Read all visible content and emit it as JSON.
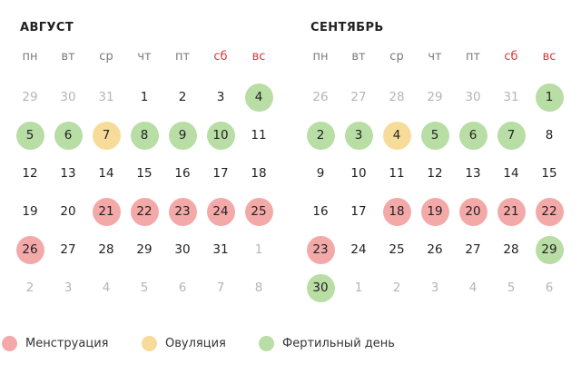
{
  "months": [
    {
      "title": "АВГУСТ",
      "weekdays": [
        "пн",
        "вт",
        "ср",
        "чт",
        "пт",
        "сб",
        "вс"
      ],
      "days": [
        {
          "n": "29",
          "dim": true
        },
        {
          "n": "30",
          "dim": true
        },
        {
          "n": "31",
          "dim": true
        },
        {
          "n": "1"
        },
        {
          "n": "2"
        },
        {
          "n": "3"
        },
        {
          "n": "4",
          "type": "fertile"
        },
        {
          "n": "5",
          "type": "fertile"
        },
        {
          "n": "6",
          "type": "fertile"
        },
        {
          "n": "7",
          "type": "ovulation"
        },
        {
          "n": "8",
          "type": "fertile"
        },
        {
          "n": "9",
          "type": "fertile"
        },
        {
          "n": "10",
          "type": "fertile"
        },
        {
          "n": "11"
        },
        {
          "n": "12"
        },
        {
          "n": "13"
        },
        {
          "n": "14"
        },
        {
          "n": "15"
        },
        {
          "n": "16"
        },
        {
          "n": "17"
        },
        {
          "n": "18"
        },
        {
          "n": "19"
        },
        {
          "n": "20"
        },
        {
          "n": "21",
          "type": "menstruation"
        },
        {
          "n": "22",
          "type": "menstruation"
        },
        {
          "n": "23",
          "type": "menstruation"
        },
        {
          "n": "24",
          "type": "menstruation"
        },
        {
          "n": "25",
          "type": "menstruation"
        },
        {
          "n": "26",
          "type": "menstruation"
        },
        {
          "n": "27"
        },
        {
          "n": "28"
        },
        {
          "n": "29"
        },
        {
          "n": "30"
        },
        {
          "n": "31"
        },
        {
          "n": "1",
          "dim": true
        },
        {
          "n": "2",
          "dim": true
        },
        {
          "n": "3",
          "dim": true
        },
        {
          "n": "4",
          "dim": true
        },
        {
          "n": "5",
          "dim": true
        },
        {
          "n": "6",
          "dim": true
        },
        {
          "n": "7",
          "dim": true
        },
        {
          "n": "8",
          "dim": true
        }
      ]
    },
    {
      "title": "СЕНТЯБРЬ",
      "weekdays": [
        "пн",
        "вт",
        "ср",
        "чт",
        "пт",
        "сб",
        "вс"
      ],
      "days": [
        {
          "n": "26",
          "dim": true
        },
        {
          "n": "27",
          "dim": true
        },
        {
          "n": "28",
          "dim": true
        },
        {
          "n": "29",
          "dim": true
        },
        {
          "n": "30",
          "dim": true
        },
        {
          "n": "31",
          "dim": true
        },
        {
          "n": "1",
          "type": "fertile"
        },
        {
          "n": "2",
          "type": "fertile"
        },
        {
          "n": "3",
          "type": "fertile"
        },
        {
          "n": "4",
          "type": "ovulation"
        },
        {
          "n": "5",
          "type": "fertile"
        },
        {
          "n": "6",
          "type": "fertile"
        },
        {
          "n": "7",
          "type": "fertile"
        },
        {
          "n": "8"
        },
        {
          "n": "9"
        },
        {
          "n": "10"
        },
        {
          "n": "11"
        },
        {
          "n": "12"
        },
        {
          "n": "13"
        },
        {
          "n": "14"
        },
        {
          "n": "15"
        },
        {
          "n": "16"
        },
        {
          "n": "17"
        },
        {
          "n": "18",
          "type": "menstruation"
        },
        {
          "n": "19",
          "type": "menstruation"
        },
        {
          "n": "20",
          "type": "menstruation"
        },
        {
          "n": "21",
          "type": "menstruation"
        },
        {
          "n": "22",
          "type": "menstruation"
        },
        {
          "n": "23",
          "type": "menstruation"
        },
        {
          "n": "24"
        },
        {
          "n": "25"
        },
        {
          "n": "26"
        },
        {
          "n": "27"
        },
        {
          "n": "28"
        },
        {
          "n": "29",
          "type": "fertile"
        },
        {
          "n": "30",
          "type": "fertile"
        },
        {
          "n": "1",
          "dim": true
        },
        {
          "n": "2",
          "dim": true
        },
        {
          "n": "3",
          "dim": true
        },
        {
          "n": "4",
          "dim": true
        },
        {
          "n": "5",
          "dim": true
        },
        {
          "n": "6",
          "dim": true
        }
      ]
    }
  ],
  "legend": [
    {
      "key": "menstruation",
      "label": "Менструация"
    },
    {
      "key": "ovulation",
      "label": "Овуляция"
    },
    {
      "key": "fertile",
      "label": "Фертильный день"
    }
  ],
  "colors": {
    "menstruation": "#f4a9a9",
    "ovulation": "#f7dc99",
    "fertile": "#b8dda5",
    "weekend_text": "#d23b3b"
  }
}
